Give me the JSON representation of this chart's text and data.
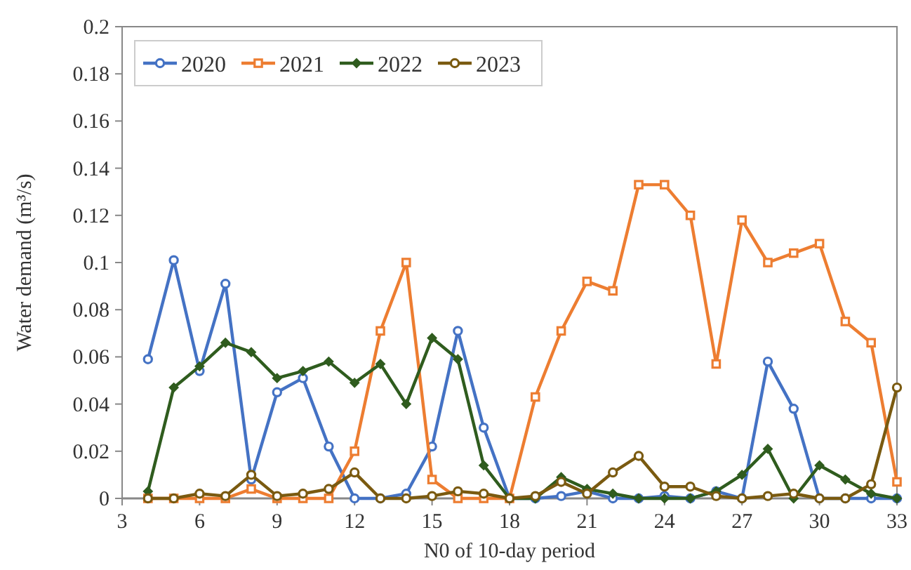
{
  "chart_data": {
    "type": "line",
    "xlabel": "N0 of 10-day period",
    "ylabel": "Water demand (m³/s)",
    "x": [
      4,
      5,
      6,
      7,
      8,
      9,
      10,
      11,
      12,
      13,
      14,
      15,
      16,
      17,
      18,
      19,
      20,
      21,
      22,
      23,
      24,
      25,
      26,
      27,
      28,
      29,
      30,
      31,
      32,
      33
    ],
    "xlim": [
      3,
      33
    ],
    "xticks": [
      3,
      6,
      9,
      12,
      15,
      18,
      21,
      24,
      27,
      30,
      33
    ],
    "ylim": [
      0,
      0.2
    ],
    "yticks": [
      0,
      0.02,
      0.04,
      0.06,
      0.08,
      0.1,
      0.12,
      0.14,
      0.16,
      0.18,
      0.2
    ],
    "legend": "top left",
    "grid": false,
    "series": [
      {
        "name": "2020",
        "color": "#4472c4",
        "marker": "circle",
        "values": [
          0.059,
          0.101,
          0.054,
          0.091,
          0.008,
          0.045,
          0.051,
          0.022,
          0,
          0,
          0.002,
          0.022,
          0.071,
          0.03,
          0,
          0,
          0.001,
          0.003,
          0,
          0,
          0.001,
          0,
          0.003,
          0,
          0.058,
          0.038,
          0,
          0,
          0,
          0
        ]
      },
      {
        "name": "2021",
        "color": "#ed7d31",
        "marker": "square",
        "values": [
          0,
          0,
          0,
          0,
          0.004,
          0,
          0,
          0,
          0.02,
          0.071,
          0.1,
          0.008,
          0,
          0,
          0,
          0.043,
          0.071,
          0.092,
          0.088,
          0.133,
          0.133,
          0.12,
          0.057,
          0.118,
          0.1,
          0.104,
          0.108,
          0.075,
          0.066,
          0.007
        ]
      },
      {
        "name": "2022",
        "color": "#2f5c1e",
        "marker": "diamond",
        "values": [
          0.003,
          0.047,
          0.056,
          0.066,
          0.062,
          0.051,
          0.054,
          0.058,
          0.049,
          0.057,
          0.04,
          0.068,
          0.059,
          0.014,
          0,
          0,
          0.009,
          0.004,
          0.002,
          0,
          0,
          0,
          0.003,
          0.01,
          0.021,
          0,
          0.014,
          0.008,
          0.002,
          0
        ]
      },
      {
        "name": "2023",
        "color": "#7a5a10",
        "marker": "circle",
        "values": [
          0,
          0,
          0.002,
          0.001,
          0.01,
          0.001,
          0.002,
          0.004,
          0.011,
          0,
          0,
          0.001,
          0.003,
          0.002,
          0,
          0.001,
          0.007,
          0.002,
          0.011,
          0.018,
          0.005,
          0.005,
          0.001,
          0,
          0.001,
          0.002,
          0,
          0,
          0.006,
          0.047
        ]
      }
    ]
  }
}
